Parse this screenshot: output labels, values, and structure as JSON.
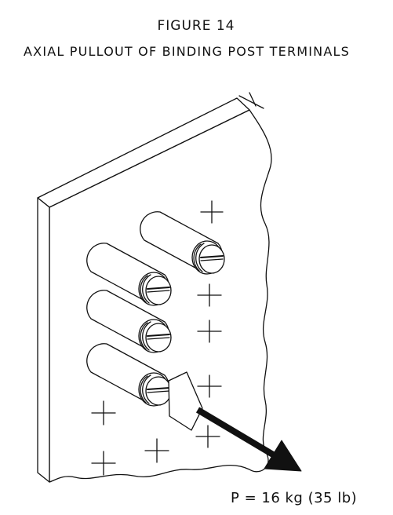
{
  "figure": {
    "number": "FIGURE 14",
    "title": "AXIAL PULLOUT OF BINDING POST TERMINALS",
    "load_label": "P = 16 kg (35 lb)"
  },
  "colors": {
    "ink": "#111111",
    "background": "#ffffff"
  },
  "posts": [
    {
      "name": "binding-post-top"
    },
    {
      "name": "binding-post-middle-upper"
    },
    {
      "name": "binding-post-middle-lower"
    },
    {
      "name": "binding-post-bottom"
    }
  ]
}
